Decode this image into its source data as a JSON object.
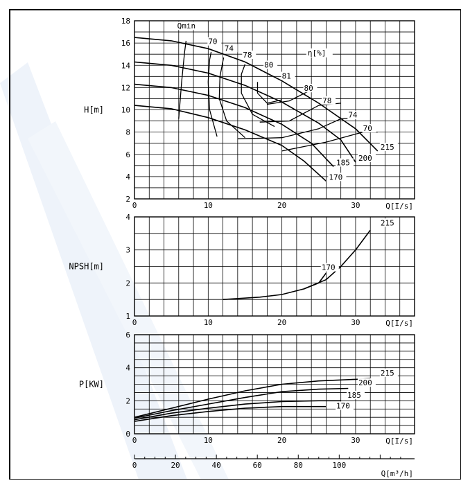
{
  "chart_data": [
    {
      "type": "line",
      "ylabel": "H[m]",
      "xlabel": "Q[I/s]",
      "xlim": [
        0,
        38
      ],
      "ylim": [
        2,
        18
      ],
      "xticks": [
        "0",
        "10",
        "20",
        "30"
      ],
      "yticks": [
        "2",
        "4",
        "6",
        "8",
        "10",
        "12",
        "14",
        "16",
        "18"
      ],
      "efficiency_label": "η[%]",
      "qmin_label": "Qmin",
      "series": [
        {
          "name": "215",
          "points": [
            [
              0,
              16.5
            ],
            [
              5,
              16.2
            ],
            [
              10,
              15.5
            ],
            [
              15,
              14.3
            ],
            [
              20,
              12.6
            ],
            [
              25,
              10.6
            ],
            [
              30,
              8.3
            ],
            [
              33,
              6.3
            ]
          ],
          "label_at": [
            33,
            6.3
          ]
        },
        {
          "name": "200",
          "points": [
            [
              0,
              14.3
            ],
            [
              5,
              14.0
            ],
            [
              10,
              13.3
            ],
            [
              15,
              12.2
            ],
            [
              20,
              10.7
            ],
            [
              25,
              8.8
            ],
            [
              28,
              7.3
            ],
            [
              30,
              5.3
            ]
          ],
          "label_at": [
            30,
            5.3
          ]
        },
        {
          "name": "185",
          "points": [
            [
              0,
              12.3
            ],
            [
              5,
              12.0
            ],
            [
              10,
              11.3
            ],
            [
              15,
              10.2
            ],
            [
              20,
              8.7
            ],
            [
              24,
              7.0
            ],
            [
              27,
              4.9
            ]
          ],
          "label_at": [
            27,
            4.9
          ]
        },
        {
          "name": "170",
          "points": [
            [
              0,
              10.4
            ],
            [
              5,
              10.1
            ],
            [
              10,
              9.3
            ],
            [
              15,
              8.2
            ],
            [
              20,
              6.8
            ],
            [
              23,
              5.4
            ],
            [
              26,
              3.6
            ]
          ],
          "label_at": [
            26,
            3.6
          ]
        }
      ],
      "efficiency_curves": [
        {
          "name": "70",
          "points": [
            [
              6,
              9.2
            ],
            [
              6.4,
              12.5
            ],
            [
              6.8,
              15.2
            ],
            [
              7,
              16.2
            ]
          ],
          "label_at": [
            10,
            15.9
          ]
        },
        {
          "name": "74",
          "points": [
            [
              11.2,
              7.6
            ],
            [
              10.2,
              10
            ],
            [
              10,
              12.5
            ],
            [
              10.2,
              14.5
            ],
            [
              10.4,
              15.2
            ]
          ],
          "label_at": [
            12.2,
            15.3
          ]
        },
        {
          "name": "78",
          "points": [
            [
              15,
              7.5
            ],
            [
              12.5,
              9
            ],
            [
              11.5,
              11
            ],
            [
              11.6,
              13
            ],
            [
              12.1,
              14.7
            ]
          ],
          "label_at": [
            14.7,
            14.7
          ]
        },
        {
          "name": "80",
          "points": [
            [
              19,
              8.5
            ],
            [
              16,
              9.6
            ],
            [
              14.5,
              11.5
            ],
            [
              14.5,
              13.2
            ],
            [
              15,
              14.1
            ]
          ],
          "label_at": [
            17.6,
            13.8
          ]
        },
        {
          "name": "81",
          "points": [
            [
              20,
              10.9
            ],
            [
              18,
              10.6
            ],
            [
              16.7,
              11.5
            ],
            [
              16.7,
              12.5
            ]
          ],
          "label_at": [
            20,
            12.8
          ]
        },
        {
          "name": "80",
          "points": [
            [
              18,
              10.5
            ],
            [
              21,
              10.8
            ],
            [
              24,
              11.8
            ]
          ],
          "label_at": [
            23,
            11.7
          ]
        },
        {
          "name": "78",
          "points": [
            [
              17,
              8.9
            ],
            [
              21,
              9.0
            ],
            [
              25,
              10.4
            ],
            [
              28,
              10.6
            ]
          ],
          "label_at": [
            25.5,
            10.6
          ]
        },
        {
          "name": "74",
          "points": [
            [
              14,
              7.4
            ],
            [
              20,
              7.5
            ],
            [
              25,
              8.3
            ],
            [
              28,
              9.2
            ],
            [
              30,
              9.3
            ]
          ],
          "label_at": [
            29,
            9.3
          ]
        },
        {
          "name": "70",
          "points": [
            [
              20,
              6.3
            ],
            [
              26,
              7.1
            ],
            [
              31,
              8.0
            ],
            [
              33,
              8.0
            ]
          ],
          "label_at": [
            31,
            8.1
          ]
        }
      ]
    },
    {
      "type": "line",
      "ylabel": "NPSH[m]",
      "xlabel": "Q[I/s]",
      "xlim": [
        0,
        38
      ],
      "ylim": [
        1,
        4
      ],
      "xticks": [
        "0",
        "10",
        "20",
        "30"
      ],
      "yticks": [
        "1",
        "2",
        "3",
        "4"
      ],
      "series": [
        {
          "name": "215",
          "points": [
            [
              12,
              1.5
            ],
            [
              17,
              1.57
            ],
            [
              20,
              1.65
            ],
            [
              23,
              1.82
            ],
            [
              26,
              2.1
            ],
            [
              28,
              2.5
            ],
            [
              30,
              3.0
            ],
            [
              32,
              3.6
            ]
          ],
          "label_at": [
            33,
            3.7
          ]
        },
        {
          "name": "170",
          "points": [
            [
              23,
              1.82
            ],
            [
              25,
              2.0
            ],
            [
              26,
              2.3
            ]
          ],
          "label_at": [
            25,
            2.35
          ]
        }
      ]
    },
    {
      "type": "line",
      "ylabel": "P[KW]",
      "xlabel": "Q[I/s]",
      "xlabel2": "Q[m³/h]",
      "xlim": [
        0,
        38
      ],
      "ylim": [
        0,
        6
      ],
      "xticks": [
        "0",
        "10",
        "20",
        "30"
      ],
      "yticks": [
        "0",
        "2",
        "4",
        "6"
      ],
      "x2ticks": [
        "0",
        "20",
        "40",
        "60",
        "80",
        "100"
      ],
      "series": [
        {
          "name": "215",
          "points": [
            [
              0,
              1.0
            ],
            [
              5,
              1.55
            ],
            [
              10,
              2.1
            ],
            [
              15,
              2.6
            ],
            [
              20,
              3.0
            ],
            [
              25,
              3.2
            ],
            [
              30,
              3.3
            ],
            [
              32,
              3.35
            ]
          ],
          "label_at": [
            33,
            3.45
          ]
        },
        {
          "name": "200",
          "points": [
            [
              0,
              0.95
            ],
            [
              5,
              1.4
            ],
            [
              10,
              1.8
            ],
            [
              15,
              2.2
            ],
            [
              20,
              2.55
            ],
            [
              25,
              2.7
            ],
            [
              29,
              2.75
            ]
          ],
          "label_at": [
            30,
            2.85
          ]
        },
        {
          "name": "185",
          "points": [
            [
              0,
              0.85
            ],
            [
              5,
              1.25
            ],
            [
              10,
              1.55
            ],
            [
              15,
              1.8
            ],
            [
              20,
              1.95
            ],
            [
              25,
              2.0
            ],
            [
              28,
              2.0
            ]
          ],
          "label_at": [
            28.5,
            2.1
          ]
        },
        {
          "name": "170",
          "points": [
            [
              0,
              0.75
            ],
            [
              5,
              1.1
            ],
            [
              10,
              1.35
            ],
            [
              15,
              1.55
            ],
            [
              20,
              1.65
            ],
            [
              25,
              1.65
            ],
            [
              26,
              1.65
            ]
          ],
          "label_at": [
            27,
            1.45
          ]
        }
      ]
    }
  ]
}
